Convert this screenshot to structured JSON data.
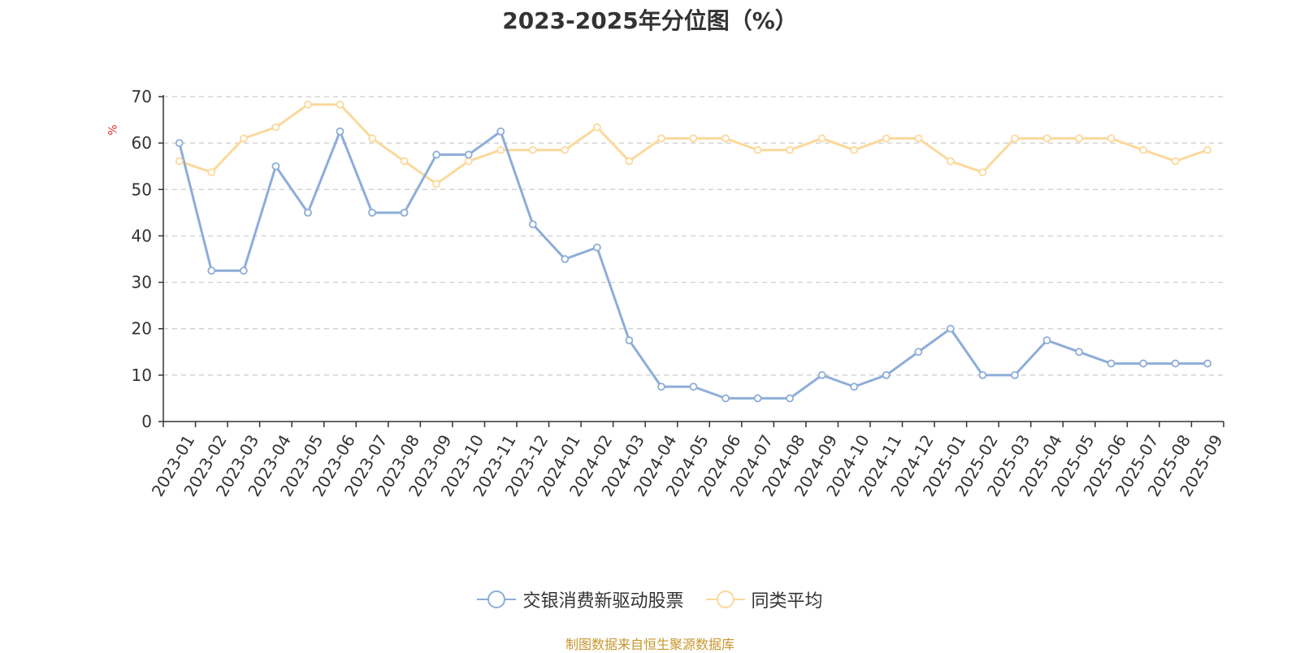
{
  "title": "2023-2025年分位图（%）",
  "source": "制图数据来自恒生聚源数据库",
  "chart_data": {
    "type": "line",
    "title": "2023-2025年分位图（%）",
    "ylabel": "%",
    "xlabel": "",
    "ylim": [
      0,
      70
    ],
    "yticks": [
      "0",
      "10",
      "20",
      "30",
      "40",
      "50",
      "60",
      "70"
    ],
    "grid": true,
    "legend_position": "bottom",
    "categories": [
      "2023-01",
      "2023-02",
      "2023-03",
      "2023-04",
      "2023-05",
      "2023-06",
      "2023-07",
      "2023-08",
      "2023-09",
      "2023-10",
      "2023-11",
      "2023-12",
      "2024-01",
      "2024-02",
      "2024-03",
      "2024-04",
      "2024-05",
      "2024-06",
      "2024-07",
      "2024-08",
      "2024-09",
      "2024-10",
      "2024-11",
      "2024-12",
      "2025-01",
      "2025-02",
      "2025-03",
      "2025-04",
      "2025-05",
      "2025-06",
      "2025-07",
      "2025-08",
      "2025-09"
    ],
    "series": [
      {
        "name": "交银消费新驱动股票",
        "color": "#8eadd8",
        "values": [
          60,
          32.5,
          32.5,
          55,
          45,
          62.5,
          45,
          45,
          57.5,
          57.5,
          62.5,
          42.5,
          35,
          37.5,
          17.5,
          7.5,
          7.5,
          5,
          5,
          5,
          10,
          7.5,
          10,
          15,
          20,
          10,
          10,
          17.5,
          15,
          12.5,
          12.5,
          12.5,
          12.5
        ]
      },
      {
        "name": "同类平均",
        "color": "#fbd99b",
        "values": [
          56.1,
          53.7,
          61,
          63.4,
          68.3,
          68.3,
          61,
          56.1,
          51.2,
          56.1,
          58.5,
          58.5,
          58.5,
          63.4,
          56.1,
          61,
          61,
          61,
          58.5,
          58.5,
          61,
          58.5,
          61,
          61,
          56.1,
          53.7,
          61,
          61,
          61,
          61,
          58.5,
          56.1,
          58.5
        ]
      }
    ]
  }
}
